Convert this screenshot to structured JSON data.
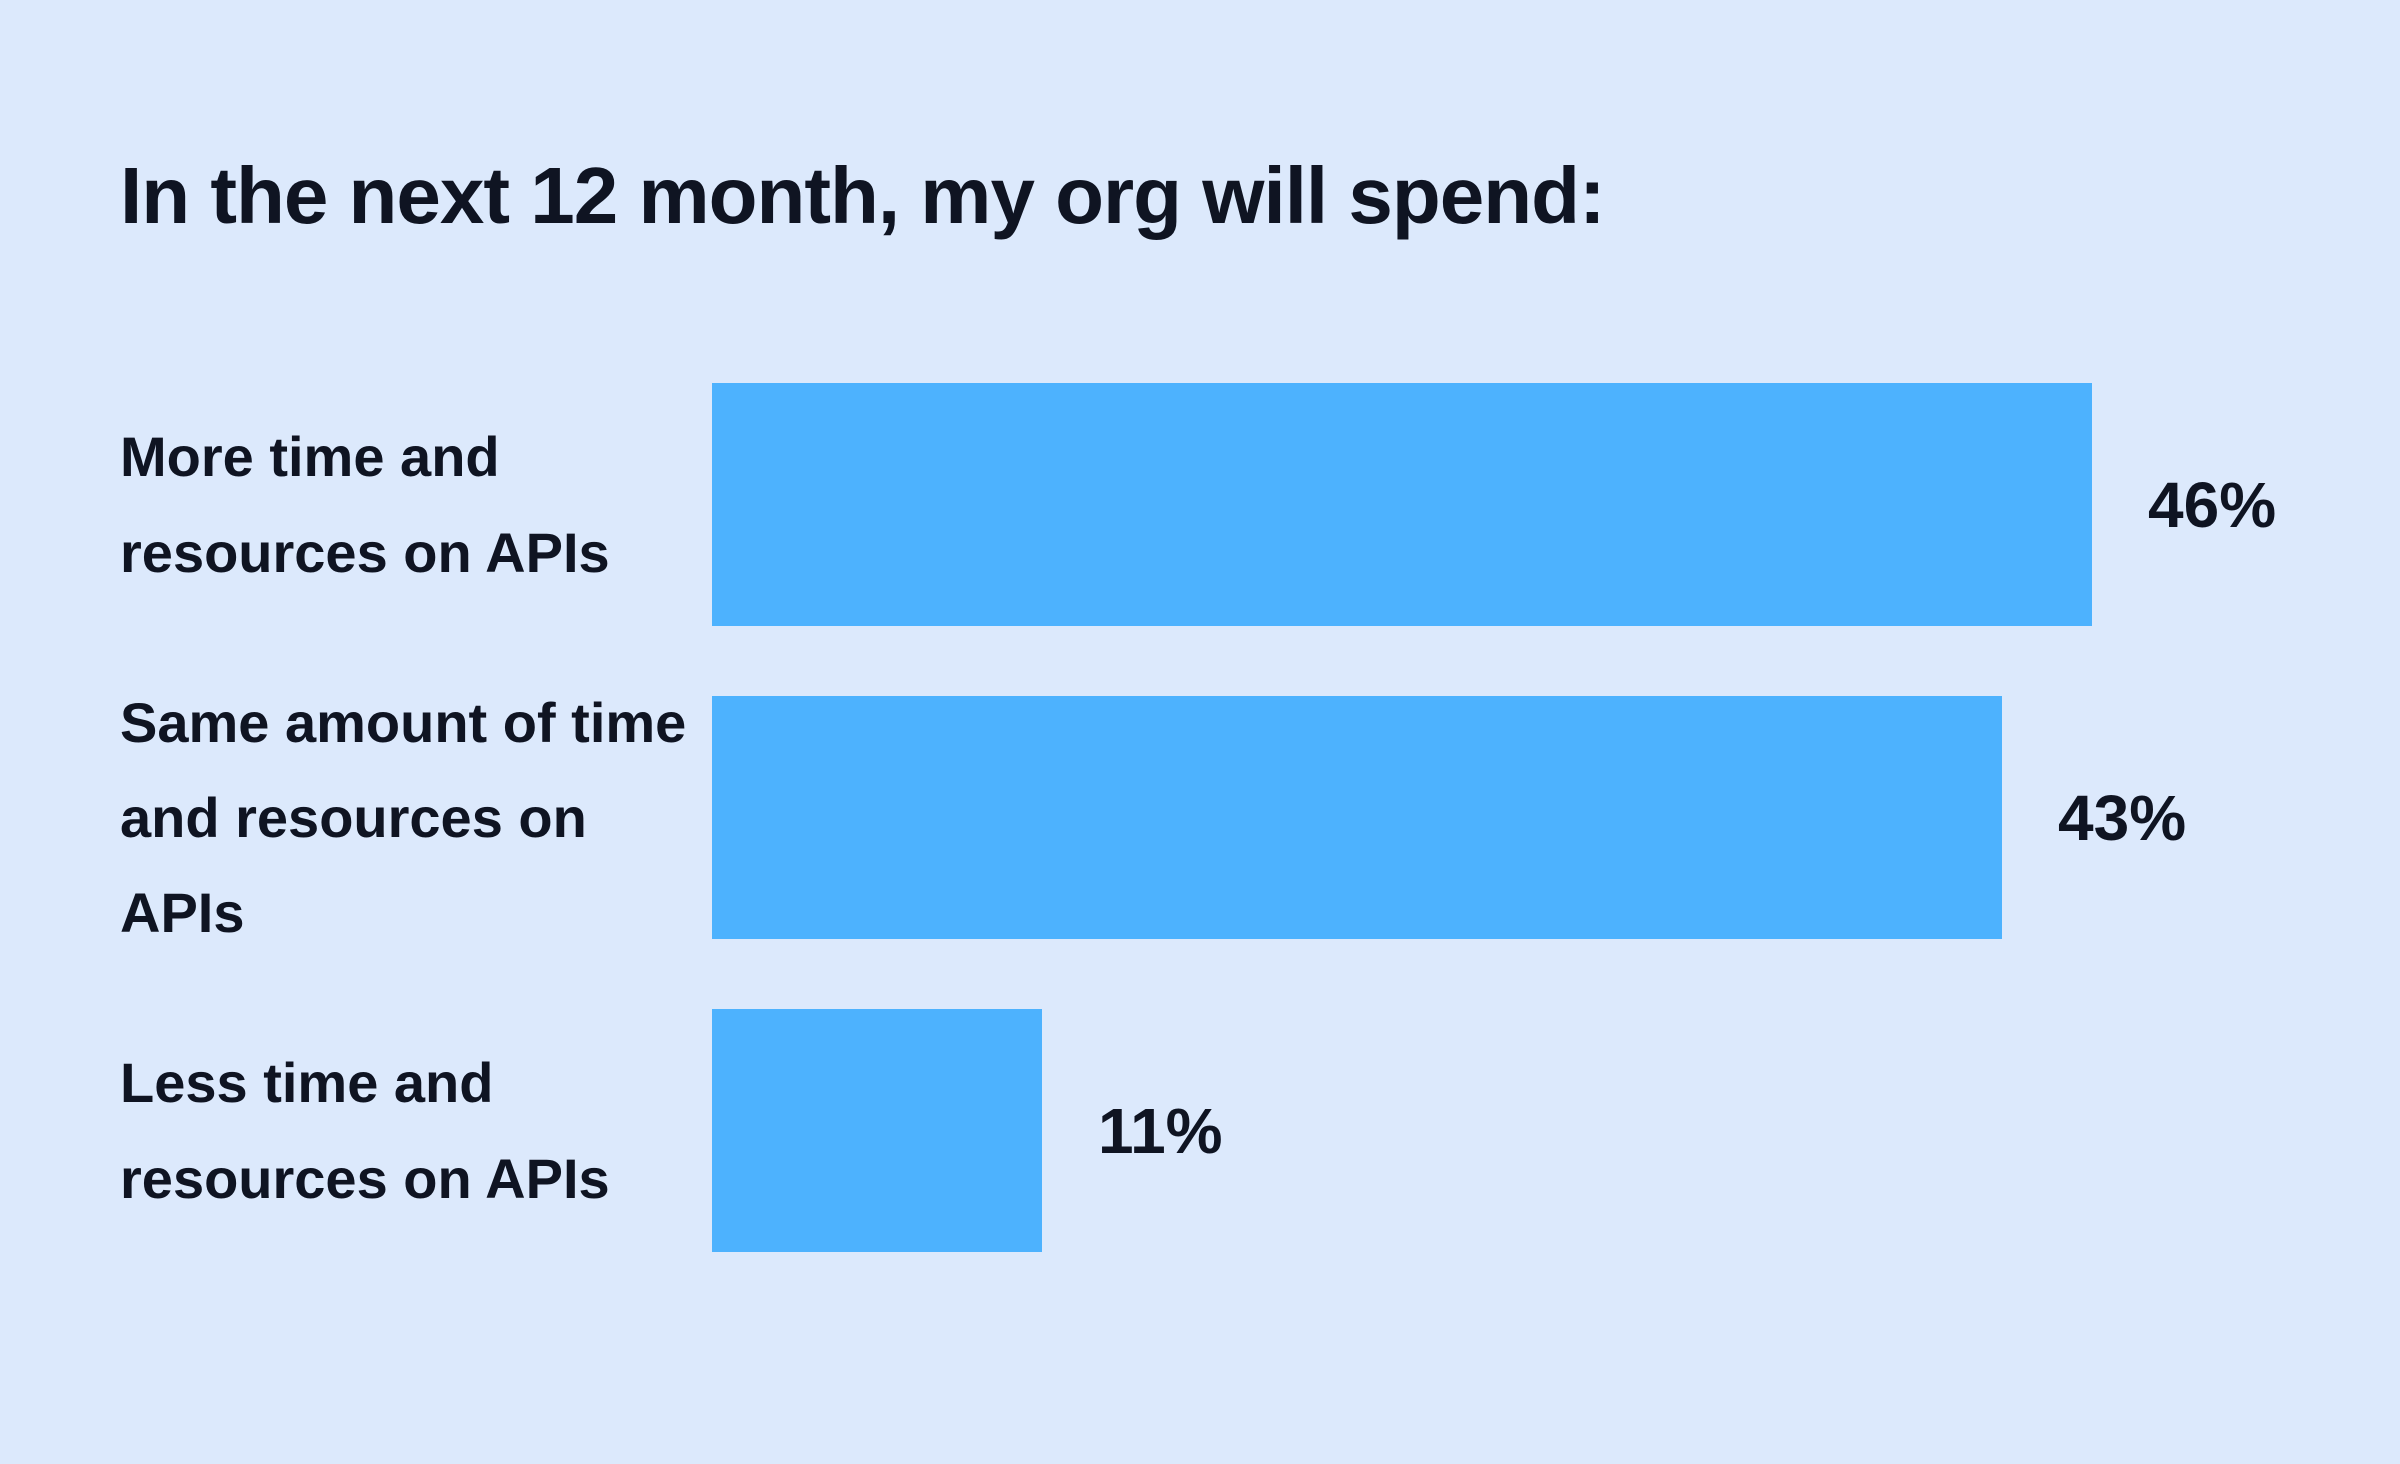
{
  "page": {
    "background_color": "#DCE9FC",
    "text_color": "#0F1422",
    "bar_color": "#4DB2FE"
  },
  "chart_data": {
    "type": "bar",
    "orientation": "horizontal",
    "title": "In the next 12 month, my org will spend:",
    "categories": [
      "More time and resources on APIs",
      "Same amount of time and resources on APIs",
      "Less time and resources on APIs"
    ],
    "values": [
      46,
      43,
      11
    ],
    "unit": "%",
    "value_labels": [
      "46%",
      "43%",
      "11%"
    ],
    "xlabel": "",
    "ylabel": "",
    "axes_shown": false,
    "grid": false,
    "legend": false,
    "bar_color": "#4DB2FE",
    "rows": [
      {
        "label_display": "More time and\nresources on APIs",
        "value": 46,
        "value_label": "46%"
      },
      {
        "label_display": "Same amount of time\nand resources on\nAPIs",
        "value": 43,
        "value_label": "43%"
      },
      {
        "label_display": "Less time and\nresources on APIs",
        "value": 11,
        "value_label": "11%"
      }
    ]
  }
}
